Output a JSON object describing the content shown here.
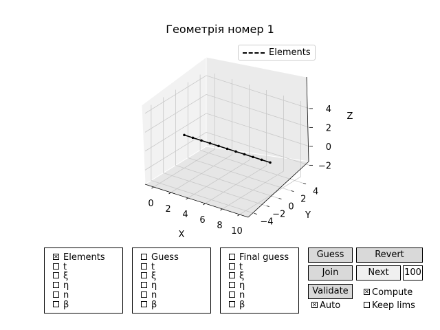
{
  "chart_data": {
    "type": "line",
    "projection": "3d",
    "title": "Геометрія номер 1",
    "xlabel": "X",
    "ylabel": "Y",
    "zlabel": "Z",
    "xticks": [
      "0",
      "2",
      "4",
      "6",
      "8",
      "10"
    ],
    "yticks": [
      "−4",
      "−2",
      "0",
      "2",
      "4"
    ],
    "zticks": [
      "−2",
      "0",
      "2",
      "4"
    ],
    "xlim": [
      -1,
      11
    ],
    "ylim": [
      -5,
      5
    ],
    "zlim": [
      -3.5,
      4.5
    ],
    "grid": true,
    "legend_position": "top-right",
    "series": [
      {
        "name": "Elements",
        "style": "dash-dot",
        "color": "#000000",
        "x": [
          0,
          1,
          2,
          3,
          4,
          5,
          6,
          7,
          8,
          9,
          10
        ],
        "y": [
          0,
          0,
          0,
          0,
          0,
          0,
          0,
          0,
          0,
          0,
          0
        ],
        "z": [
          0,
          0,
          0,
          0,
          0,
          0,
          0,
          0,
          0,
          0,
          0
        ]
      }
    ]
  },
  "panels": {
    "elements": {
      "items": [
        {
          "label": "Elements",
          "checked": true
        },
        {
          "label": "t",
          "checked": false
        },
        {
          "label": "ξ",
          "checked": false
        },
        {
          "label": "η",
          "checked": false
        },
        {
          "label": "n",
          "checked": false
        },
        {
          "label": "β",
          "checked": false
        }
      ]
    },
    "guess": {
      "items": [
        {
          "label": "Guess",
          "checked": false
        },
        {
          "label": "t",
          "checked": false
        },
        {
          "label": "ξ",
          "checked": false
        },
        {
          "label": "η",
          "checked": false
        },
        {
          "label": "n",
          "checked": false
        },
        {
          "label": "β",
          "checked": false
        }
      ]
    },
    "final": {
      "items": [
        {
          "label": "Final guess",
          "checked": false
        },
        {
          "label": "t",
          "checked": false
        },
        {
          "label": "ξ",
          "checked": false
        },
        {
          "label": "η",
          "checked": false
        },
        {
          "label": "n",
          "checked": false
        },
        {
          "label": "β",
          "checked": false
        }
      ]
    }
  },
  "controls": {
    "guess_label": "Guess",
    "revert_label": "Revert",
    "join_label": "Join",
    "next_label": "Next",
    "next_value": "100",
    "validate_label": "Validate",
    "compute": {
      "label": "Compute",
      "checked": true
    },
    "auto": {
      "label": "Auto",
      "checked": true
    },
    "keep_lims": {
      "label": "Keep lims",
      "checked": false
    }
  }
}
